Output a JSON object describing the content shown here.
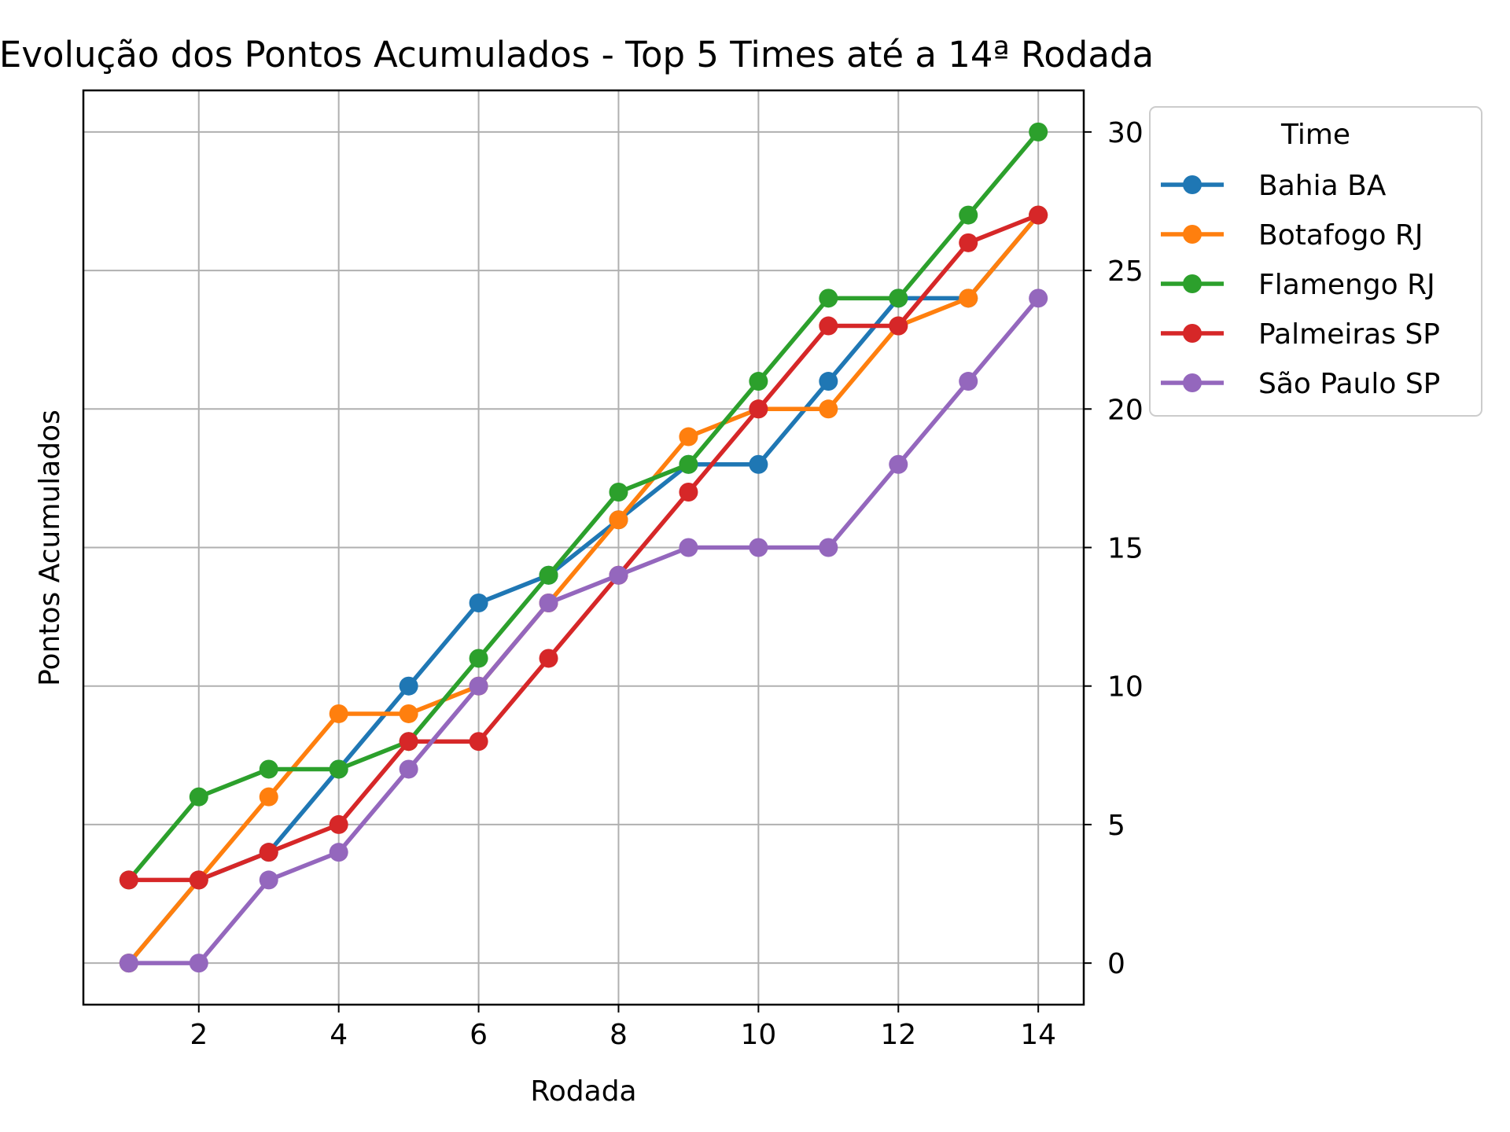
{
  "chart_data": {
    "type": "line",
    "title": "Evolução dos Pontos Acumulados - Top 5 Times até a 14ª Rodada",
    "xlabel": "Rodada",
    "ylabel": "Pontos Acumulados",
    "x": [
      1,
      2,
      3,
      4,
      5,
      6,
      7,
      8,
      9,
      10,
      11,
      12,
      13,
      14
    ],
    "xlim": [
      0.35,
      14.65
    ],
    "ylim": [
      -1.5,
      31.5
    ],
    "xticks": [
      2,
      4,
      6,
      8,
      10,
      12,
      14
    ],
    "yticks": [
      0,
      5,
      10,
      15,
      20,
      25,
      30
    ],
    "yaxis_side": "right",
    "grid": true,
    "legend_title": "Time",
    "legend_position": "upper-right-outside",
    "series": [
      {
        "name": "Bahia BA",
        "color": "#1f77b4",
        "values": [
          0,
          3,
          4,
          7,
          10,
          13,
          14,
          16,
          18,
          18,
          21,
          24,
          24,
          27
        ]
      },
      {
        "name": "Botafogo RJ",
        "color": "#ff7f0e",
        "values": [
          0,
          3,
          6,
          9,
          9,
          10,
          13,
          16,
          19,
          20,
          20,
          23,
          24,
          27
        ]
      },
      {
        "name": "Flamengo RJ",
        "color": "#2ca02c",
        "values": [
          3,
          6,
          7,
          7,
          8,
          11,
          14,
          17,
          18,
          21,
          24,
          24,
          27,
          30
        ]
      },
      {
        "name": "Palmeiras SP",
        "color": "#d62728",
        "values": [
          3,
          3,
          4,
          5,
          8,
          8,
          11,
          14,
          17,
          20,
          23,
          23,
          26,
          27
        ]
      },
      {
        "name": "São Paulo SP",
        "color": "#9467bd",
        "values": [
          0,
          0,
          3,
          4,
          7,
          10,
          13,
          14,
          15,
          15,
          15,
          18,
          21,
          24
        ]
      }
    ]
  }
}
